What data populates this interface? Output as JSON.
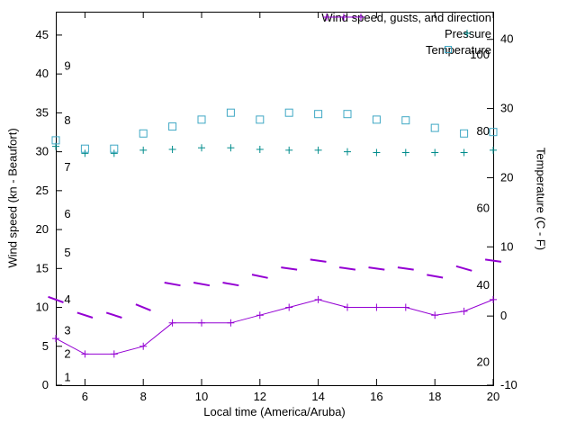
{
  "chart_data": {
    "type": "line",
    "xlabel": "Local time (America/Aruba)",
    "ylabel_left": "Wind speed (kn - Beaufort)",
    "ylabel_right": "Temperature (C - F)",
    "xlim": [
      5,
      20
    ],
    "ylim_left": [
      0,
      48
    ],
    "ylim_right": [
      -10,
      44
    ],
    "xticks": [
      6,
      8,
      10,
      12,
      14,
      16,
      18,
      20
    ],
    "yticks_left": [
      0,
      5,
      10,
      15,
      20,
      25,
      30,
      35,
      40,
      45
    ],
    "yticks_right": [
      -10,
      0,
      10,
      20,
      30,
      40
    ],
    "grid": false,
    "background": "#ffffff",
    "axis_color": "#000000",
    "x": [
      5,
      6,
      7,
      8,
      9,
      10,
      11,
      12,
      13,
      14,
      15,
      16,
      17,
      18,
      19,
      20
    ],
    "series": [
      {
        "name": "Wind speed, gusts, and direction",
        "type": "line+points",
        "marker": "plus",
        "axis": "left",
        "color": "#9400d3",
        "values": [
          6,
          4,
          4,
          5,
          8,
          8,
          8,
          9,
          10,
          11,
          10,
          10,
          10,
          9,
          9.5,
          11
        ]
      },
      {
        "name": "Wind gusts and direction barbs",
        "type": "direction-barbs",
        "axis": "left",
        "color": "#9400d3",
        "values": [
          11,
          9,
          9,
          10,
          13,
          13,
          13,
          14,
          15,
          16,
          15,
          15,
          15,
          14,
          15,
          16
        ],
        "direction_deg": [
          20,
          18,
          18,
          22,
          10,
          10,
          10,
          12,
          8,
          8,
          8,
          8,
          8,
          10,
          16,
          8
        ]
      },
      {
        "name": "Pressure",
        "type": "points",
        "marker": "plus",
        "axis": "left",
        "color": "#008c8c",
        "values": [
          30.7,
          29.8,
          29.8,
          30.2,
          30.3,
          30.5,
          30.5,
          30.3,
          30.2,
          30.2,
          30.0,
          29.9,
          29.9,
          29.9,
          29.9,
          30.2
        ]
      },
      {
        "name": "Temperature",
        "type": "points",
        "marker": "open-square",
        "axis": "right",
        "color": "#3fa8c4",
        "values": [
          25.4,
          24.2,
          24.2,
          26.4,
          27.4,
          28.4,
          29.4,
          28.4,
          29.4,
          29.2,
          29.2,
          28.4,
          28.3,
          27.2,
          26.4,
          26.6
        ]
      }
    ],
    "beaufort_scale": [
      {
        "label": "1",
        "kn": 1
      },
      {
        "label": "2",
        "kn": 4
      },
      {
        "label": "3",
        "kn": 7
      },
      {
        "label": "4",
        "kn": 11
      },
      {
        "label": "5",
        "kn": 17
      },
      {
        "label": "6",
        "kn": 22
      },
      {
        "label": "7",
        "kn": 28
      },
      {
        "label": "8",
        "kn": 34
      },
      {
        "label": "9",
        "kn": 41
      }
    ],
    "fahrenheit_scale": [
      {
        "label": "20",
        "f": 20
      },
      {
        "label": "40",
        "f": 40
      },
      {
        "label": "60",
        "f": 60
      },
      {
        "label": "80",
        "f": 80
      },
      {
        "label": "100",
        "f": 100
      }
    ],
    "legend": {
      "position": "top-right",
      "items": [
        {
          "label": "Wind speed, gusts, and direction",
          "key": "wind"
        },
        {
          "label": "Pressure",
          "key": "pressure"
        },
        {
          "label": "Temperature",
          "key": "temperature"
        }
      ]
    }
  }
}
